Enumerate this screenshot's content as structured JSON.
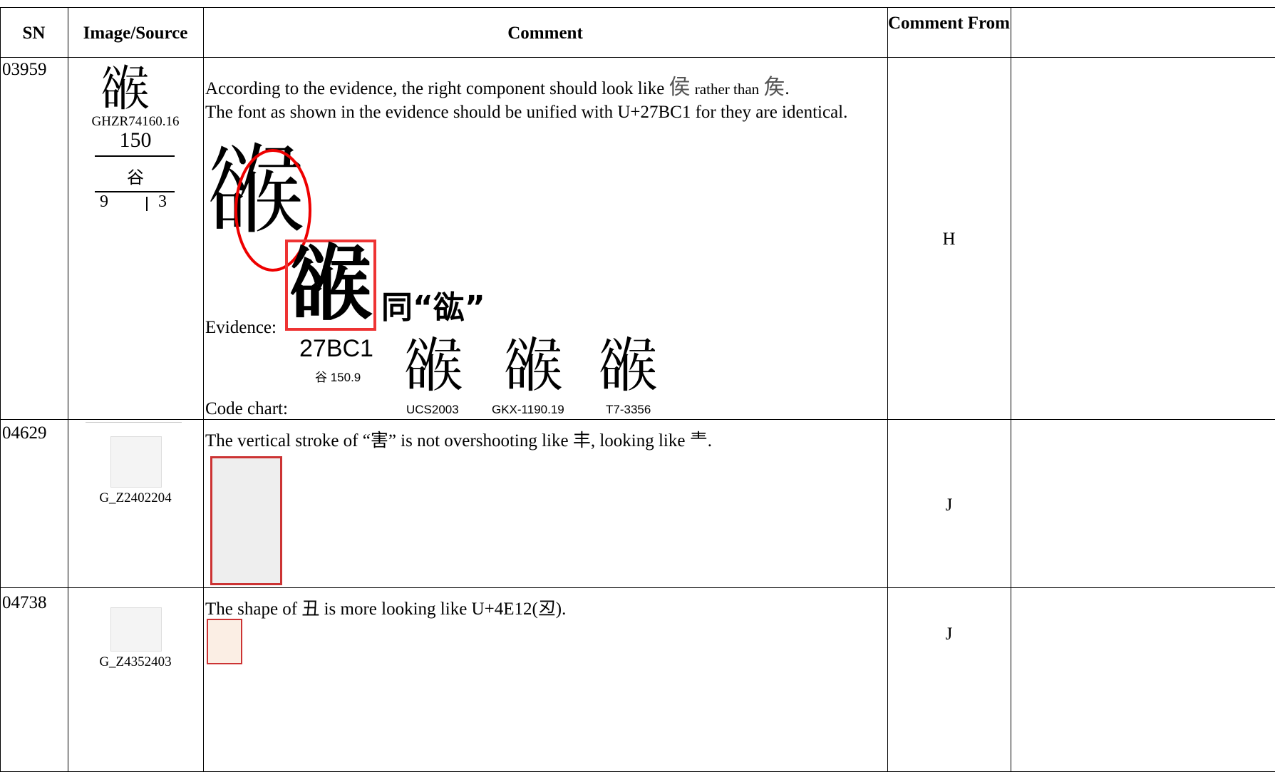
{
  "header": {
    "columns": [
      "SN",
      "Image/Source",
      "Comment",
      "Comment From"
    ]
  },
  "rows": [
    {
      "sn": "03959",
      "glyph": "𧯁",
      "source": "GHZR74160.16",
      "radical_number": "150",
      "radical": "谷",
      "total_strokes": "9",
      "residual_strokes": "3",
      "comment": {
        "text_1": "According to the evidence, the right component should look like",
        "glyph_a": "侯",
        "text_2": "rather than",
        "glyph_b": "矦",
        "text_3": ".",
        "text_4": "The font as shown in the evidence should be unified with U+27BC1 for they are identical.",
        "evidence_label": "Evidence:",
        "evidence_note": "同“谹”",
        "code_chart_label": "Code chart:",
        "code_point": "27BC1",
        "code_radical": "谷 150.9",
        "code_sources": [
          "UCS2003",
          "GKX-1190.19",
          "T7-3356"
        ]
      },
      "from": "H"
    },
    {
      "sn": "04629",
      "source": "G_Z2402204",
      "comment": {
        "text_1": "The vertical stroke of “害” is not overshooting like 丰, looking like 龶."
      },
      "from": "J"
    },
    {
      "sn": "04738",
      "source": "G_Z4352403",
      "comment": {
        "text_1": "The shape of 丑 is more looking like U+4E12(丒)."
      },
      "from": "J"
    }
  ]
}
